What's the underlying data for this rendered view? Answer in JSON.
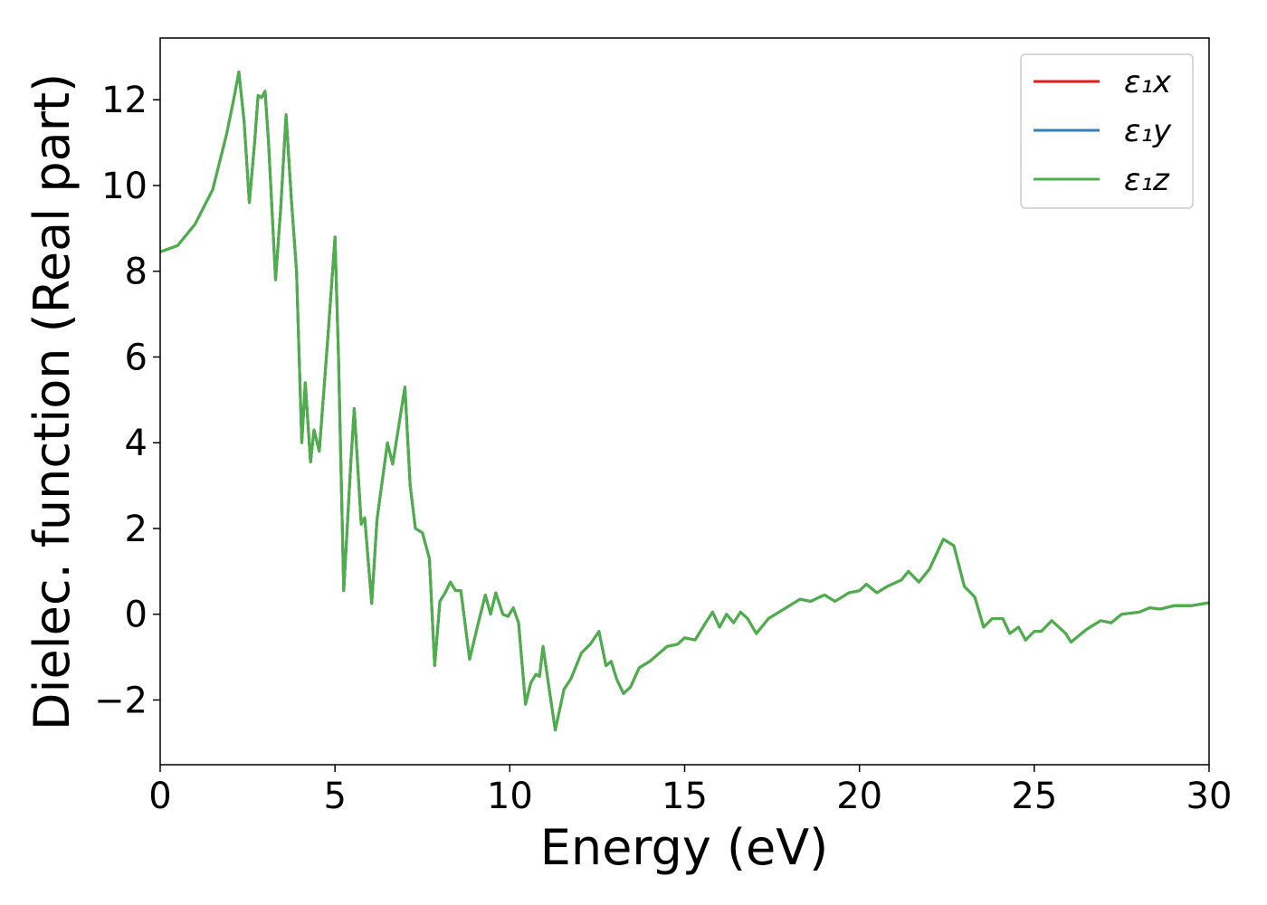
{
  "chart_data": {
    "type": "line",
    "xlabel": "Energy (eV)",
    "ylabel": "Dielec. function (Real part)",
    "xlim": [
      0,
      30
    ],
    "ylim": [
      -3.51,
      13.44
    ],
    "xticks": [
      0,
      5,
      10,
      15,
      20,
      25,
      30
    ],
    "yticks": [
      {
        "value": -2,
        "label": "−2"
      },
      0,
      2,
      4,
      6,
      8,
      10,
      12
    ],
    "legend": "upper right",
    "grid": false,
    "x": [
      0,
      0.5,
      1.0,
      1.5,
      1.9,
      2.1,
      2.25,
      2.4,
      2.55,
      2.7,
      2.8,
      2.9,
      3.0,
      3.1,
      3.3,
      3.45,
      3.6,
      3.75,
      3.9,
      4.05,
      4.15,
      4.3,
      4.4,
      4.55,
      4.8,
      5.0,
      5.1,
      5.25,
      5.45,
      5.55,
      5.75,
      5.85,
      6.05,
      6.2,
      6.5,
      6.65,
      7.0,
      7.15,
      7.3,
      7.5,
      7.7,
      7.85,
      8.0,
      8.15,
      8.3,
      8.45,
      8.6,
      8.85,
      9.1,
      9.3,
      9.45,
      9.6,
      9.8,
      9.95,
      10.1,
      10.25,
      10.45,
      10.6,
      10.75,
      10.85,
      10.95,
      11.1,
      11.3,
      11.55,
      11.75,
      12.05,
      12.3,
      12.55,
      12.75,
      12.9,
      13.05,
      13.25,
      13.45,
      13.7,
      14.0,
      14.5,
      14.8,
      15.0,
      15.3,
      15.6,
      15.8,
      16.0,
      16.2,
      16.4,
      16.6,
      16.8,
      17.05,
      17.4,
      18.0,
      18.3,
      18.6,
      19.0,
      19.3,
      19.7,
      20.0,
      20.2,
      20.5,
      20.8,
      21.2,
      21.4,
      21.7,
      22.0,
      22.4,
      22.7,
      23.0,
      23.3,
      23.55,
      23.8,
      24.1,
      24.3,
      24.55,
      24.75,
      25.0,
      25.2,
      25.5,
      25.7,
      25.9,
      26.05,
      26.5,
      26.9,
      27.2,
      27.5,
      28.0,
      28.3,
      28.6,
      29.0,
      29.5,
      30.0
    ],
    "series": [
      {
        "name": "ε₁x",
        "color": "#e41a1c",
        "values": [
          8.45,
          8.6,
          9.1,
          9.9,
          11.2,
          12.0,
          12.65,
          11.5,
          9.6,
          11.0,
          12.1,
          12.05,
          12.2,
          11.0,
          7.8,
          9.5,
          11.65,
          9.7,
          8.0,
          4.0,
          5.4,
          3.55,
          4.3,
          3.8,
          6.5,
          8.8,
          6.0,
          0.55,
          3.5,
          4.8,
          2.1,
          2.25,
          0.25,
          2.2,
          4.0,
          3.5,
          5.3,
          3.0,
          2.0,
          1.9,
          1.3,
          -1.2,
          0.3,
          0.5,
          0.75,
          0.55,
          0.55,
          -1.05,
          -0.2,
          0.45,
          0.0,
          0.5,
          0.0,
          -0.05,
          0.15,
          -0.2,
          -2.1,
          -1.6,
          -1.4,
          -1.45,
          -0.75,
          -1.6,
          -2.7,
          -1.75,
          -1.5,
          -0.9,
          -0.7,
          -0.4,
          -1.2,
          -1.1,
          -1.5,
          -1.85,
          -1.7,
          -1.25,
          -1.1,
          -0.75,
          -0.7,
          -0.55,
          -0.6,
          -0.2,
          0.05,
          -0.3,
          0.0,
          -0.2,
          0.05,
          -0.1,
          -0.45,
          -0.1,
          0.2,
          0.35,
          0.3,
          0.45,
          0.3,
          0.5,
          0.55,
          0.7,
          0.5,
          0.65,
          0.8,
          1.0,
          0.75,
          1.05,
          1.75,
          1.6,
          0.65,
          0.4,
          -0.3,
          -0.1,
          -0.1,
          -0.45,
          -0.3,
          -0.6,
          -0.4,
          -0.4,
          -0.15,
          -0.3,
          -0.45,
          -0.65,
          -0.35,
          -0.15,
          -0.2,
          0.0,
          0.05,
          0.15,
          0.12,
          0.2,
          0.2,
          0.27
        ]
      },
      {
        "name": "ε₁y",
        "color": "#377eb8",
        "values": [
          8.45,
          8.6,
          9.1,
          9.9,
          11.2,
          12.0,
          12.65,
          11.5,
          9.6,
          11.0,
          12.1,
          12.05,
          12.2,
          11.0,
          7.8,
          9.5,
          11.65,
          9.7,
          8.0,
          4.0,
          5.4,
          3.55,
          4.3,
          3.8,
          6.5,
          8.8,
          6.0,
          0.55,
          3.5,
          4.8,
          2.1,
          2.25,
          0.25,
          2.2,
          4.0,
          3.5,
          5.3,
          3.0,
          2.0,
          1.9,
          1.3,
          -1.2,
          0.3,
          0.5,
          0.75,
          0.55,
          0.55,
          -1.05,
          -0.2,
          0.45,
          0.0,
          0.5,
          0.0,
          -0.05,
          0.15,
          -0.2,
          -2.1,
          -1.6,
          -1.4,
          -1.45,
          -0.75,
          -1.6,
          -2.7,
          -1.75,
          -1.5,
          -0.9,
          -0.7,
          -0.4,
          -1.2,
          -1.1,
          -1.5,
          -1.85,
          -1.7,
          -1.25,
          -1.1,
          -0.75,
          -0.7,
          -0.55,
          -0.6,
          -0.2,
          0.05,
          -0.3,
          0.0,
          -0.2,
          0.05,
          -0.1,
          -0.45,
          -0.1,
          0.2,
          0.35,
          0.3,
          0.45,
          0.3,
          0.5,
          0.55,
          0.7,
          0.5,
          0.65,
          0.8,
          1.0,
          0.75,
          1.05,
          1.75,
          1.6,
          0.65,
          0.4,
          -0.3,
          -0.1,
          -0.1,
          -0.45,
          -0.3,
          -0.6,
          -0.4,
          -0.4,
          -0.15,
          -0.3,
          -0.45,
          -0.65,
          -0.35,
          -0.15,
          -0.2,
          0.0,
          0.05,
          0.15,
          0.12,
          0.2,
          0.2,
          0.27
        ]
      },
      {
        "name": "ε₁z",
        "color": "#4daf4a",
        "values": [
          8.45,
          8.6,
          9.1,
          9.9,
          11.2,
          12.0,
          12.65,
          11.5,
          9.6,
          11.0,
          12.1,
          12.05,
          12.2,
          11.0,
          7.8,
          9.5,
          11.65,
          9.7,
          8.0,
          4.0,
          5.4,
          3.55,
          4.3,
          3.8,
          6.5,
          8.8,
          6.0,
          0.55,
          3.5,
          4.8,
          2.1,
          2.25,
          0.25,
          2.2,
          4.0,
          3.5,
          5.3,
          3.0,
          2.0,
          1.9,
          1.3,
          -1.2,
          0.3,
          0.5,
          0.75,
          0.55,
          0.55,
          -1.05,
          -0.2,
          0.45,
          0.0,
          0.5,
          0.0,
          -0.05,
          0.15,
          -0.2,
          -2.1,
          -1.6,
          -1.4,
          -1.45,
          -0.75,
          -1.6,
          -2.7,
          -1.75,
          -1.5,
          -0.9,
          -0.7,
          -0.4,
          -1.2,
          -1.1,
          -1.5,
          -1.85,
          -1.7,
          -1.25,
          -1.1,
          -0.75,
          -0.7,
          -0.55,
          -0.6,
          -0.2,
          0.05,
          -0.3,
          0.0,
          -0.2,
          0.05,
          -0.1,
          -0.45,
          -0.1,
          0.2,
          0.35,
          0.3,
          0.45,
          0.3,
          0.5,
          0.55,
          0.7,
          0.5,
          0.65,
          0.8,
          1.0,
          0.75,
          1.05,
          1.75,
          1.6,
          0.65,
          0.4,
          -0.3,
          -0.1,
          -0.1,
          -0.45,
          -0.3,
          -0.6,
          -0.4,
          -0.4,
          -0.15,
          -0.3,
          -0.45,
          -0.65,
          -0.35,
          -0.15,
          -0.2,
          0.0,
          0.05,
          0.15,
          0.12,
          0.2,
          0.2,
          0.27
        ]
      }
    ]
  }
}
